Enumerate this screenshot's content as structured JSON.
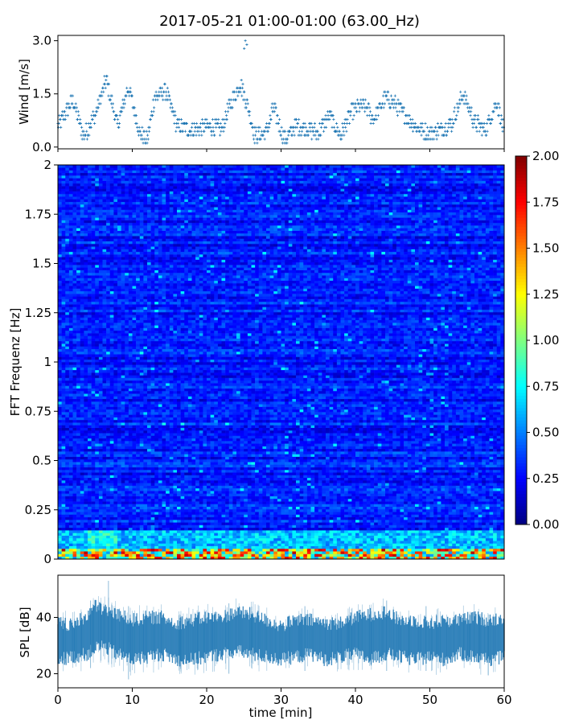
{
  "title": "2017-05-21 01:00-01:00 (63.00_Hz)",
  "chart_data": [
    {
      "type": "scatter",
      "panel": "wind",
      "ylabel": "Wind [m/s]",
      "xlim": [
        0,
        60
      ],
      "ylim": [
        -0.05,
        3.15
      ],
      "yticks": [
        0.0,
        1.5,
        3.0
      ],
      "ytick_labels": [
        "0.0",
        "1.5",
        "3.0"
      ],
      "marker": "+",
      "color": "#1f77b4",
      "envelope_time_min": [
        0,
        2,
        3.5,
        5,
        6.5,
        8,
        9.5,
        11,
        12,
        13,
        14.5,
        16,
        17.5,
        19,
        20.5,
        22,
        23,
        24.5,
        25.5,
        26.5,
        28,
        29,
        30.5,
        32,
        33.5,
        35,
        36.5,
        38,
        39.5,
        41,
        42.5,
        44,
        45.5,
        47,
        48.5,
        50,
        51.5,
        53,
        54.5,
        56,
        57.5,
        59,
        60
      ],
      "envelope_wind_ms": [
        0.6,
        1.3,
        0.3,
        0.9,
        1.9,
        0.6,
        1.7,
        0.4,
        0.2,
        1.4,
        1.6,
        0.6,
        0.5,
        0.5,
        0.6,
        0.5,
        1.1,
        1.8,
        1.2,
        0.3,
        0.4,
        1.1,
        0.2,
        0.6,
        0.5,
        0.4,
        0.9,
        0.3,
        1.0,
        1.2,
        0.8,
        1.4,
        1.2,
        0.8,
        0.5,
        0.4,
        0.5,
        0.7,
        1.5,
        0.7,
        0.5,
        1.3,
        0.4
      ],
      "max_wind_ms": 3.0,
      "max_wind_time_min": 25.2
    },
    {
      "type": "heatmap",
      "panel": "spectrogram",
      "ylabel": "FFT Frequenz [Hz]",
      "xlim": [
        0,
        60
      ],
      "ylim": [
        0,
        2
      ],
      "yticks": [
        0,
        0.25,
        0.5,
        0.75,
        1,
        1.25,
        1.5,
        1.75,
        2
      ],
      "ytick_labels": [
        "0",
        "0.25",
        "0.5",
        "0.75",
        "1",
        "1.25",
        "1.5",
        "1.75",
        "2"
      ],
      "colormap": "jet",
      "colorbar": {
        "vmin": 0.0,
        "vmax": 2.0,
        "ticks": [
          0.0,
          0.25,
          0.5,
          0.75,
          1.0,
          1.25,
          1.5,
          1.75,
          2.0
        ],
        "tick_labels": [
          "0.00",
          "0.25",
          "0.50",
          "0.75",
          "1.00",
          "1.25",
          "1.50",
          "1.75",
          "2.00"
        ]
      },
      "typical_value": 0.3,
      "low_frequency_band_hz": [
        0,
        0.05
      ],
      "low_frequency_band_value": 1.2
    },
    {
      "type": "area",
      "panel": "spl",
      "ylabel": "SPL [dB]",
      "xlabel": "time [min]",
      "xlim": [
        0,
        60
      ],
      "ylim": [
        15,
        55
      ],
      "xticks": [
        0,
        10,
        20,
        30,
        40,
        50,
        60
      ],
      "xtick_labels": [
        "0",
        "10",
        "20",
        "30",
        "40",
        "50",
        "60"
      ],
      "yticks": [
        20,
        40
      ],
      "ytick_labels": [
        "20",
        "40"
      ],
      "color": "#1f77b4",
      "band_time_min": [
        0,
        2,
        4,
        5,
        6,
        8,
        10,
        12,
        14,
        16,
        18,
        20,
        22,
        24,
        26,
        28,
        30,
        32,
        34,
        36,
        38,
        40,
        42,
        44,
        46,
        48,
        50,
        52,
        54,
        56,
        58,
        60
      ],
      "band_low_db": [
        25,
        26,
        27,
        29,
        30,
        27,
        25,
        26,
        27,
        25,
        25,
        26,
        27,
        28,
        27,
        26,
        25,
        26,
        27,
        25,
        26,
        27,
        25,
        27,
        26,
        25,
        26,
        25,
        27,
        26,
        25,
        26
      ],
      "band_high_db": [
        38,
        37,
        41,
        44,
        43,
        41,
        39,
        40,
        40,
        38,
        39,
        40,
        40,
        42,
        41,
        39,
        37,
        39,
        39,
        38,
        38,
        40,
        41,
        42,
        39,
        39,
        38,
        39,
        39,
        40,
        39,
        40
      ],
      "spikes": [
        {
          "time_min": 4.4,
          "low_db": 22,
          "high_db": 46
        },
        {
          "time_min": 6.8,
          "low_db": 24,
          "high_db": 53
        },
        {
          "time_min": 9.5,
          "low_db": 18,
          "high_db": 44
        },
        {
          "time_min": 23.0,
          "low_db": 20,
          "high_db": 45
        },
        {
          "time_min": 33.2,
          "low_db": 21,
          "high_db": 44
        },
        {
          "time_min": 44.2,
          "low_db": 21,
          "high_db": 46
        },
        {
          "time_min": 49.5,
          "low_db": 21,
          "high_db": 44
        }
      ]
    }
  ]
}
